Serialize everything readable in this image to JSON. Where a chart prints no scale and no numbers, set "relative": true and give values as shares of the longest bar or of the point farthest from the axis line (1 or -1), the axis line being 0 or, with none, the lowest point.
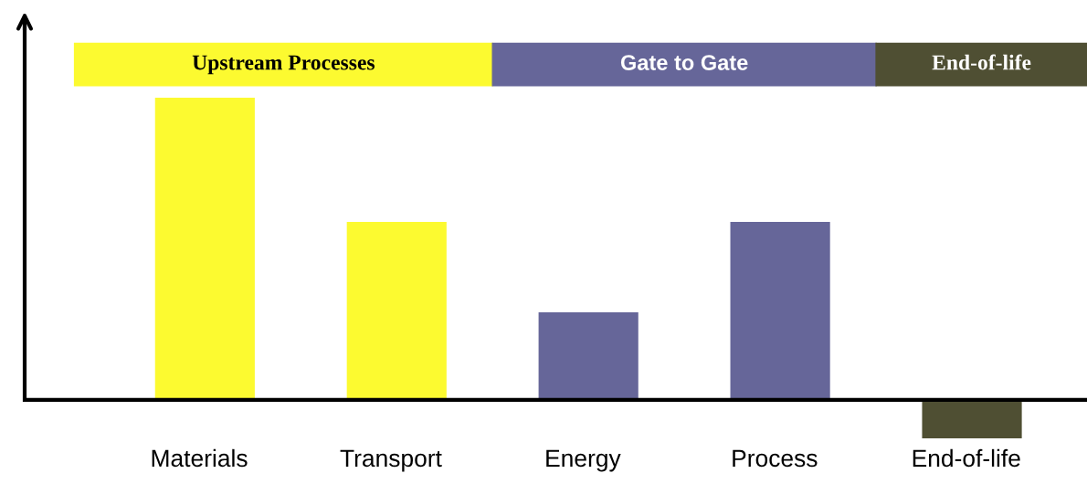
{
  "chart_data": {
    "type": "bar",
    "relative": true,
    "categories": [
      "Materials",
      "Transport",
      "Energy",
      "Process",
      "End-of-life"
    ],
    "values": [
      1,
      0.589,
      0.29,
      0.589,
      -0.127
    ],
    "colors": [
      "#fcfa30",
      "#fcfa30",
      "#666699",
      "#666699",
      "#4f4f33"
    ],
    "annotations": [
      "Upstream Processes",
      "Gate to Gate",
      "End-of-life"
    ]
  }
}
